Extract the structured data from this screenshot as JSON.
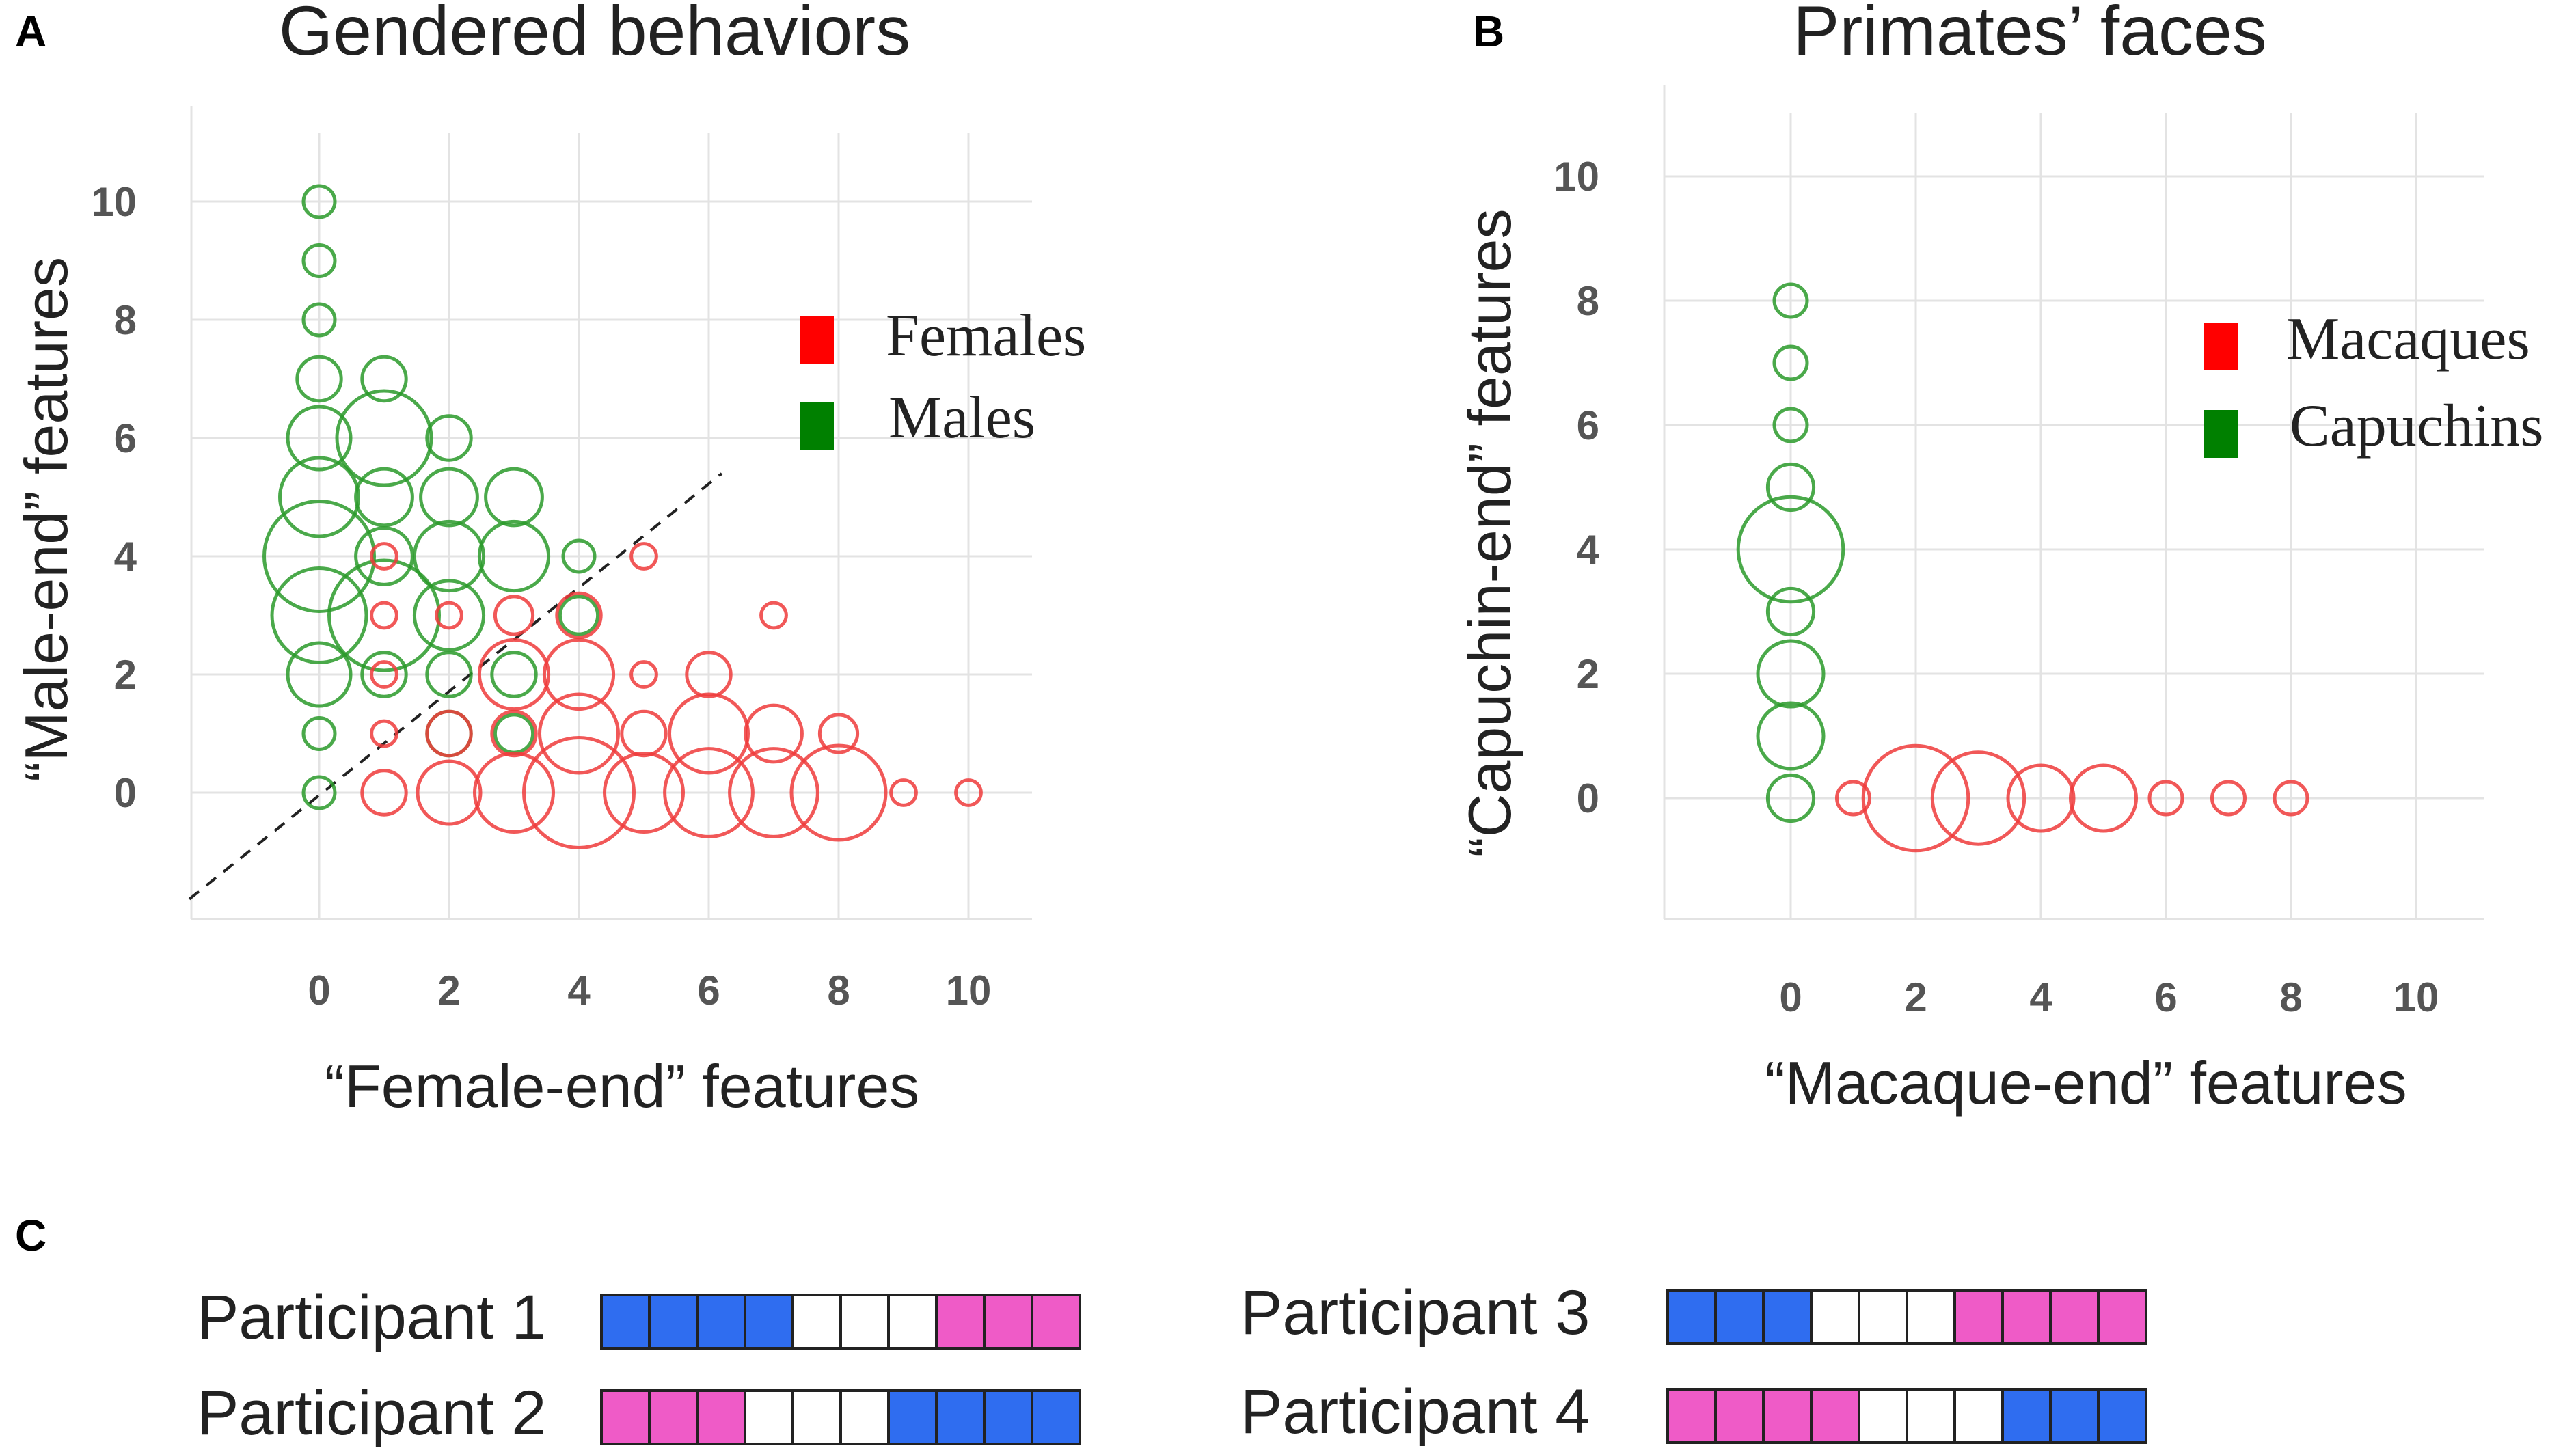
{
  "colors": {
    "female": "#ee3b3b",
    "male": "#2a9a2a",
    "legend_red": "#ff0000",
    "legend_green": "#008000",
    "blue": "#2f6df0",
    "pink": "#ef5bc7",
    "grid": "#e3e3e3",
    "tick": "#555555"
  },
  "chart_data": [
    {
      "panel_label": "A",
      "type": "scatter",
      "title": "Gendered behaviors",
      "xlabel": "“Female-end” features",
      "ylabel": "“Male-end” features",
      "x_ticks": [
        "0",
        "2",
        "4",
        "6",
        "8",
        "10"
      ],
      "y_ticks": [
        "0",
        "2",
        "4",
        "6",
        "8",
        "10"
      ],
      "xlim": [
        -2,
        11
      ],
      "ylim": [
        -2,
        11
      ],
      "diagonal": {
        "from": [
          -2,
          -1.8
        ],
        "to": [
          6.2,
          5.4
        ]
      },
      "legend": [
        {
          "label": "Females",
          "color": "legend_red"
        },
        {
          "label": "Males",
          "color": "legend_green"
        }
      ],
      "series": [
        {
          "name": "Males",
          "color": "male",
          "points": [
            [
              0,
              10,
              1
            ],
            [
              0,
              9,
              1
            ],
            [
              0,
              8,
              1
            ],
            [
              0,
              7,
              1.4
            ],
            [
              0,
              6,
              2
            ],
            [
              0,
              5,
              2.5
            ],
            [
              0,
              4,
              3.5
            ],
            [
              0,
              3,
              3
            ],
            [
              0,
              2,
              2
            ],
            [
              0,
              1,
              1
            ],
            [
              0,
              0,
              1
            ],
            [
              1,
              7,
              1.4
            ],
            [
              1,
              6,
              3
            ],
            [
              1,
              5,
              1.8
            ],
            [
              1,
              4,
              1.8
            ],
            [
              1,
              3,
              3.5
            ],
            [
              1,
              2,
              1.4
            ],
            [
              2,
              6,
              1.4
            ],
            [
              2,
              5,
              1.8
            ],
            [
              2,
              4,
              2.2
            ],
            [
              2,
              3,
              2.2
            ],
            [
              2,
              2,
              1.4
            ],
            [
              2,
              1,
              1.4
            ],
            [
              3,
              5,
              1.8
            ],
            [
              3,
              4,
              2.2
            ],
            [
              3,
              2,
              1.4
            ],
            [
              3,
              1,
              1.2
            ],
            [
              4,
              4,
              1
            ],
            [
              4,
              3,
              1.2
            ]
          ]
        },
        {
          "name": "Females",
          "color": "female",
          "points": [
            [
              1,
              4,
              0.8
            ],
            [
              1,
              3,
              0.8
            ],
            [
              1,
              2,
              0.8
            ],
            [
              1,
              1,
              0.8
            ],
            [
              1,
              0,
              1.4
            ],
            [
              2,
              3,
              0.8
            ],
            [
              2,
              1,
              1.4
            ],
            [
              2,
              0,
              2
            ],
            [
              3,
              3,
              1.2
            ],
            [
              3,
              2,
              2.2
            ],
            [
              3,
              1,
              1.4
            ],
            [
              3,
              0,
              2.5
            ],
            [
              4,
              3,
              1.4
            ],
            [
              4,
              2,
              2.2
            ],
            [
              4,
              1,
              2.5
            ],
            [
              4,
              0,
              3.5
            ],
            [
              5,
              4,
              0.8
            ],
            [
              5,
              2,
              0.8
            ],
            [
              5,
              1,
              1.4
            ],
            [
              5,
              0,
              2.5
            ],
            [
              6,
              2,
              1.4
            ],
            [
              6,
              1,
              2.5
            ],
            [
              6,
              0,
              2.8
            ],
            [
              7,
              3,
              0.8
            ],
            [
              7,
              1,
              1.8
            ],
            [
              7,
              0,
              2.8
            ],
            [
              8,
              1,
              1.2
            ],
            [
              8,
              0,
              3
            ],
            [
              9,
              0,
              0.8
            ],
            [
              10,
              0,
              0.8
            ]
          ]
        }
      ]
    },
    {
      "panel_label": "B",
      "type": "scatter",
      "title": "Primates’ faces",
      "xlabel": "“Macaque-end” features",
      "ylabel": "“Capuchin-end” features",
      "x_ticks": [
        "0",
        "2",
        "4",
        "6",
        "8",
        "10"
      ],
      "y_ticks": [
        "0",
        "2",
        "4",
        "6",
        "8",
        "10"
      ],
      "xlim": [
        -2,
        11
      ],
      "ylim": [
        -2,
        11
      ],
      "legend": [
        {
          "label": "Macaques",
          "color": "legend_red"
        },
        {
          "label": "Capuchins",
          "color": "legend_green"
        }
      ],
      "series": [
        {
          "name": "Capuchins",
          "color": "male",
          "points": [
            [
              0,
              8,
              1
            ],
            [
              0,
              7,
              1
            ],
            [
              0,
              6,
              1
            ],
            [
              0,
              5,
              1.4
            ],
            [
              0,
              4,
              3.2
            ],
            [
              0,
              3,
              1.4
            ],
            [
              0,
              2,
              2
            ],
            [
              0,
              1,
              2
            ],
            [
              0,
              0,
              1.4
            ]
          ]
        },
        {
          "name": "Macaques",
          "color": "female",
          "points": [
            [
              1,
              0,
              1
            ],
            [
              2,
              0,
              3.2
            ],
            [
              3,
              0,
              2.8
            ],
            [
              4,
              0,
              2
            ],
            [
              5,
              0,
              2
            ],
            [
              6,
              0,
              1
            ],
            [
              7,
              0,
              1
            ],
            [
              8,
              0,
              1
            ]
          ]
        }
      ]
    }
  ],
  "panel_c": {
    "label": "C",
    "participants": [
      {
        "name": "Participant 1",
        "cells": [
          "b",
          "b",
          "b",
          "b",
          "w",
          "w",
          "w",
          "p",
          "p",
          "p"
        ]
      },
      {
        "name": "Participant 2",
        "cells": [
          "p",
          "p",
          "p",
          "w",
          "w",
          "w",
          "b",
          "b",
          "b",
          "b"
        ]
      },
      {
        "name": "Participant 3",
        "cells": [
          "b",
          "b",
          "b",
          "w",
          "w",
          "w",
          "p",
          "p",
          "p",
          "p"
        ]
      },
      {
        "name": "Participant 4",
        "cells": [
          "p",
          "p",
          "p",
          "p",
          "w",
          "w",
          "w",
          "b",
          "b",
          "b"
        ]
      }
    ]
  }
}
